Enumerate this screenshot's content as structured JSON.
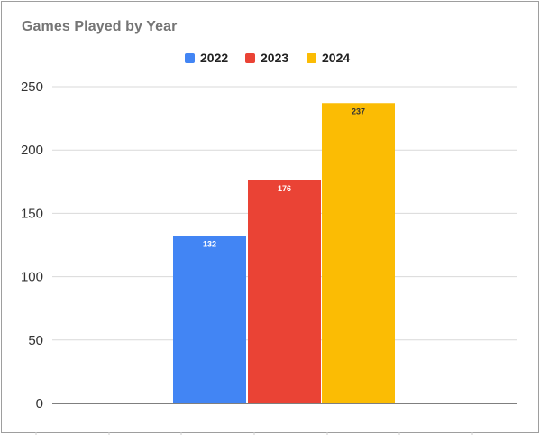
{
  "chart_data": {
    "type": "bar",
    "title": "Games Played by Year",
    "categories": [
      ""
    ],
    "series": [
      {
        "name": "2022",
        "values": [
          132
        ],
        "color": "#4285f4",
        "label_color": "#ffffff"
      },
      {
        "name": "2023",
        "values": [
          176
        ],
        "color": "#ea4335",
        "label_color": "#ffffff"
      },
      {
        "name": "2024",
        "values": [
          237
        ],
        "color": "#fbbc04",
        "label_color": "#333333"
      }
    ],
    "ylim": [
      0,
      250
    ],
    "yticks": [
      "0",
      "50",
      "100",
      "150",
      "200",
      "250"
    ],
    "xlabel": "",
    "ylabel": "",
    "grid": true,
    "legend_position": "top-center",
    "gridline_color": "#d9d9d9",
    "baseline_color": "#333333"
  }
}
